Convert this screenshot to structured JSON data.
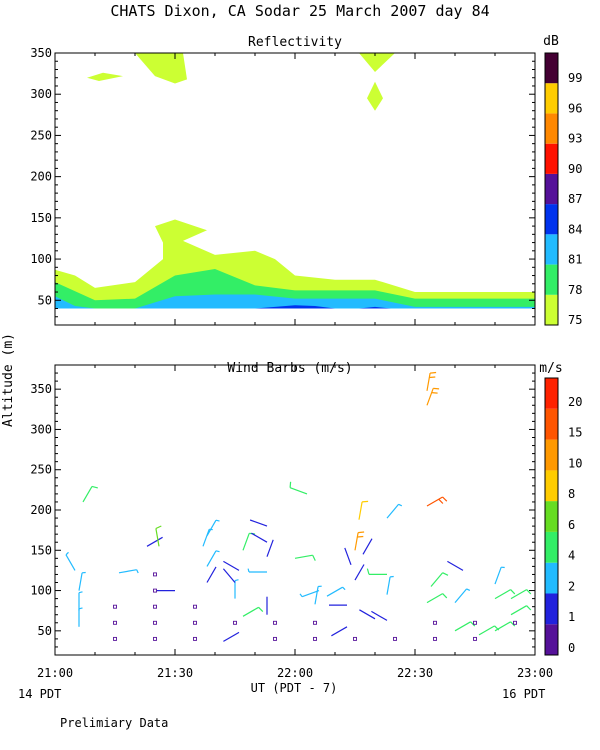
{
  "page_title": "CHATS Dixon, CA  Sodar  25 March 2007  day  84",
  "shared": {
    "ylabel": "Altitude  (m)",
    "xlabel": "UT  (PDT - 7)",
    "x_ticks": [
      "21:00",
      "21:30",
      "22:00",
      "22:30",
      "23:00"
    ],
    "x_note_left": "14 PDT",
    "x_note_right": "16 PDT",
    "footer": "Prelimiary Data"
  },
  "colors": {
    "refl": [
      "#ccff33",
      "#33ee66",
      "#22bbff",
      "#0033ee",
      "#551199",
      "#ff1100",
      "#ff8800",
      "#ffcc00",
      "#440033"
    ],
    "wind": [
      "#551199",
      "#2222dd",
      "#22bbff",
      "#33ee66",
      "#66dd22",
      "#ffcc00",
      "#ff9900",
      "#ff5500",
      "#ff2200"
    ]
  },
  "chart_data": [
    {
      "type": "heatmap",
      "title": "Reflectivity",
      "ylim": [
        20,
        350
      ],
      "y_ticks": [
        50,
        100,
        150,
        200,
        250,
        300,
        350
      ],
      "xlim": [
        "21:00",
        "23:00"
      ],
      "colorbar": {
        "unit": "dB",
        "labels": [
          "75",
          "78",
          "81",
          "84",
          "87",
          "90",
          "93",
          "96",
          "99"
        ]
      },
      "layers": [
        {
          "level": 75,
          "points": [
            [
              "21:00",
              40
            ],
            [
              "21:00",
              87
            ],
            [
              "21:05",
              80
            ],
            [
              "21:10",
              65
            ],
            [
              "21:20",
              72
            ],
            [
              "21:27",
              100
            ],
            [
              "21:27",
              120
            ],
            [
              "21:25",
              140
            ],
            [
              "21:30",
              148
            ],
            [
              "21:38",
              135
            ],
            [
              "21:32",
              122
            ],
            [
              "21:40",
              105
            ],
            [
              "21:50",
              110
            ],
            [
              "21:55",
              100
            ],
            [
              "22:00",
              80
            ],
            [
              "22:10",
              75
            ],
            [
              "22:20",
              75
            ],
            [
              "22:30",
              60
            ],
            [
              "22:40",
              60
            ],
            [
              "23:00",
              60
            ],
            [
              "23:00",
              40
            ]
          ]
        },
        {
          "level": 78,
          "points": [
            [
              "21:00",
              40
            ],
            [
              "21:00",
              72
            ],
            [
              "21:10",
              50
            ],
            [
              "21:20",
              52
            ],
            [
              "21:30",
              80
            ],
            [
              "21:40",
              88
            ],
            [
              "21:50",
              68
            ],
            [
              "22:00",
              62
            ],
            [
              "22:10",
              62
            ],
            [
              "22:20",
              62
            ],
            [
              "22:30",
              52
            ],
            [
              "22:40",
              52
            ],
            [
              "23:00",
              52
            ],
            [
              "23:00",
              40
            ]
          ]
        },
        {
          "level": 81,
          "points": [
            [
              "21:00",
              40
            ],
            [
              "21:00",
              55
            ],
            [
              "21:05",
              43
            ],
            [
              "21:10",
              40
            ],
            [
              "21:20",
              40
            ],
            [
              "21:30",
              55
            ],
            [
              "21:40",
              57
            ],
            [
              "21:50",
              57
            ],
            [
              "22:00",
              52
            ],
            [
              "22:10",
              52
            ],
            [
              "22:20",
              52
            ],
            [
              "22:30",
              42
            ],
            [
              "23:00",
              42
            ],
            [
              "23:00",
              40
            ]
          ]
        },
        {
          "level": 84,
          "points": [
            [
              "21:50",
              40
            ],
            [
              "21:55",
              42
            ],
            [
              "22:00",
              44
            ],
            [
              "22:05",
              43
            ],
            [
              "22:10",
              40
            ]
          ]
        },
        {
          "level": 84,
          "points": [
            [
              "22:16",
              40
            ],
            [
              "22:20",
              42
            ],
            [
              "22:24",
              40
            ]
          ]
        },
        {
          "level": 75,
          "points": [
            [
              "21:08",
              320
            ],
            [
              "21:12",
              326
            ],
            [
              "21:17",
              322
            ],
            [
              "21:11",
              316
            ]
          ]
        },
        {
          "level": 75,
          "points": [
            [
              "21:20",
              350
            ],
            [
              "21:32",
              350
            ],
            [
              "21:33",
              318
            ],
            [
              "21:30",
              313
            ],
            [
              "21:25",
              322
            ]
          ]
        },
        {
          "level": 75,
          "points": [
            [
              "22:16",
              350
            ],
            [
              "22:25",
              350
            ],
            [
              "22:20",
              327
            ]
          ]
        },
        {
          "level": 75,
          "points": [
            [
              "22:20",
              315
            ],
            [
              "22:22",
              295
            ],
            [
              "22:20",
              280
            ],
            [
              "22:18",
              295
            ]
          ]
        }
      ]
    },
    {
      "type": "scatter",
      "title": "Wind Barbs (m/s)",
      "ylim": [
        20,
        380
      ],
      "y_ticks": [
        50,
        100,
        150,
        200,
        250,
        300,
        350
      ],
      "xlim": [
        "21:00",
        "23:00"
      ],
      "colorbar": {
        "unit": "m/s",
        "labels": [
          "0",
          "1",
          "2",
          "4",
          "6",
          "8",
          "10",
          "15",
          "20"
        ]
      },
      "barbs": [
        {
          "x": "21:06",
          "y": 55,
          "speed": 2.5,
          "dir": 0
        },
        {
          "x": "21:06",
          "y": 75,
          "speed": 2.5,
          "dir": 0
        },
        {
          "x": "21:06",
          "y": 100,
          "speed": 2.5,
          "dir": 10
        },
        {
          "x": "21:05",
          "y": 125,
          "speed": 2.5,
          "dir": 330
        },
        {
          "x": "21:07",
          "y": 210,
          "speed": 5,
          "dir": 30
        },
        {
          "x": "21:16",
          "y": 122,
          "speed": 2.5,
          "dir": 80
        },
        {
          "x": "21:23",
          "y": 155,
          "speed": 1.5,
          "dir": 60
        },
        {
          "x": "21:26",
          "y": 155,
          "speed": 7,
          "dir": 350
        },
        {
          "x": "21:30",
          "y": 100,
          "speed": 1.5,
          "dir": 270
        },
        {
          "x": "21:38",
          "y": 110,
          "speed": 1.5,
          "dir": 30
        },
        {
          "x": "21:38",
          "y": 130,
          "speed": 2.5,
          "dir": 30
        },
        {
          "x": "21:37",
          "y": 155,
          "speed": 2.5,
          "dir": 20
        },
        {
          "x": "21:38",
          "y": 168,
          "speed": 2.5,
          "dir": 30
        },
        {
          "x": "21:46",
          "y": 48,
          "speed": 1.5,
          "dir": 240
        },
        {
          "x": "21:47",
          "y": 68,
          "speed": 4,
          "dir": 60
        },
        {
          "x": "21:45",
          "y": 90,
          "speed": 2.5,
          "dir": 0
        },
        {
          "x": "21:45",
          "y": 110,
          "speed": 1.5,
          "dir": 320
        },
        {
          "x": "21:46",
          "y": 125,
          "speed": 1.5,
          "dir": 300
        },
        {
          "x": "21:47",
          "y": 150,
          "speed": 4,
          "dir": 20
        },
        {
          "x": "21:53",
          "y": 70,
          "speed": 1.5,
          "dir": 0
        },
        {
          "x": "21:53",
          "y": 123,
          "speed": 2.5,
          "dir": 270
        },
        {
          "x": "21:53",
          "y": 142,
          "speed": 1.5,
          "dir": 20
        },
        {
          "x": "21:53",
          "y": 160,
          "speed": 1.5,
          "dir": 300
        },
        {
          "x": "21:53",
          "y": 180,
          "speed": 1.5,
          "dir": 290
        },
        {
          "x": "22:00",
          "y": 140,
          "speed": 4,
          "dir": 80
        },
        {
          "x": "22:03",
          "y": 220,
          "speed": 4,
          "dir": 290
        },
        {
          "x": "22:05",
          "y": 83,
          "speed": 2.5,
          "dir": 10
        },
        {
          "x": "22:06",
          "y": 100,
          "speed": 2.5,
          "dir": 250
        },
        {
          "x": "22:08",
          "y": 93,
          "speed": 2.5,
          "dir": 60
        },
        {
          "x": "22:13",
          "y": 55,
          "speed": 1.5,
          "dir": 240
        },
        {
          "x": "22:13",
          "y": 82,
          "speed": 1.5,
          "dir": 270
        },
        {
          "x": "22:15",
          "y": 113,
          "speed": 1.5,
          "dir": 30
        },
        {
          "x": "22:14",
          "y": 132,
          "speed": 1.5,
          "dir": 340
        },
        {
          "x": "22:15",
          "y": 150,
          "speed": 10,
          "dir": 10
        },
        {
          "x": "22:16",
          "y": 188,
          "speed": 8,
          "dir": 10
        },
        {
          "x": "22:17",
          "y": 145,
          "speed": 1.5,
          "dir": 30
        },
        {
          "x": "22:20",
          "y": 65,
          "speed": 1.5,
          "dir": 300
        },
        {
          "x": "22:23",
          "y": 63,
          "speed": 1.5,
          "dir": 300
        },
        {
          "x": "22:23",
          "y": 95,
          "speed": 2.5,
          "dir": 10
        },
        {
          "x": "22:23",
          "y": 120,
          "speed": 4,
          "dir": 270
        },
        {
          "x": "22:23",
          "y": 190,
          "speed": 2.5,
          "dir": 40
        },
        {
          "x": "22:33",
          "y": 85,
          "speed": 4,
          "dir": 60
        },
        {
          "x": "22:34",
          "y": 105,
          "speed": 4,
          "dir": 40
        },
        {
          "x": "22:33",
          "y": 205,
          "speed": 15,
          "dir": 60
        },
        {
          "x": "22:33",
          "y": 330,
          "speed": 10,
          "dir": 20
        },
        {
          "x": "22:33",
          "y": 348,
          "speed": 10,
          "dir": 10
        },
        {
          "x": "22:40",
          "y": 85,
          "speed": 2.5,
          "dir": 40
        },
        {
          "x": "22:42",
          "y": 125,
          "speed": 1.5,
          "dir": 300
        },
        {
          "x": "22:40",
          "y": 50,
          "speed": 4,
          "dir": 60
        },
        {
          "x": "22:50",
          "y": 90,
          "speed": 4,
          "dir": 60
        },
        {
          "x": "22:50",
          "y": 108,
          "speed": 2.5,
          "dir": 20
        },
        {
          "x": "22:50",
          "y": 50,
          "speed": 4,
          "dir": 60
        },
        {
          "x": "22:54",
          "y": 70,
          "speed": 4,
          "dir": 60
        },
        {
          "x": "22:54",
          "y": 90,
          "speed": 4,
          "dir": 60
        },
        {
          "x": "22:46",
          "y": 45,
          "speed": 4,
          "dir": 60
        }
      ],
      "calm_points": [
        {
          "x": "21:15",
          "y": 40
        },
        {
          "x": "21:15",
          "y": 60
        },
        {
          "x": "21:15",
          "y": 80
        },
        {
          "x": "21:25",
          "y": 40
        },
        {
          "x": "21:25",
          "y": 60
        },
        {
          "x": "21:25",
          "y": 80
        },
        {
          "x": "21:25",
          "y": 100
        },
        {
          "x": "21:25",
          "y": 120
        },
        {
          "x": "21:35",
          "y": 40
        },
        {
          "x": "21:35",
          "y": 60
        },
        {
          "x": "21:35",
          "y": 80
        },
        {
          "x": "21:45",
          "y": 60
        },
        {
          "x": "21:55",
          "y": 40
        },
        {
          "x": "21:55",
          "y": 60
        },
        {
          "x": "22:05",
          "y": 40
        },
        {
          "x": "22:05",
          "y": 60
        },
        {
          "x": "22:15",
          "y": 40
        },
        {
          "x": "22:25",
          "y": 40
        },
        {
          "x": "22:35",
          "y": 40
        },
        {
          "x": "22:35",
          "y": 60
        },
        {
          "x": "22:45",
          "y": 40
        },
        {
          "x": "22:45",
          "y": 60
        },
        {
          "x": "22:55",
          "y": 60
        }
      ]
    }
  ]
}
